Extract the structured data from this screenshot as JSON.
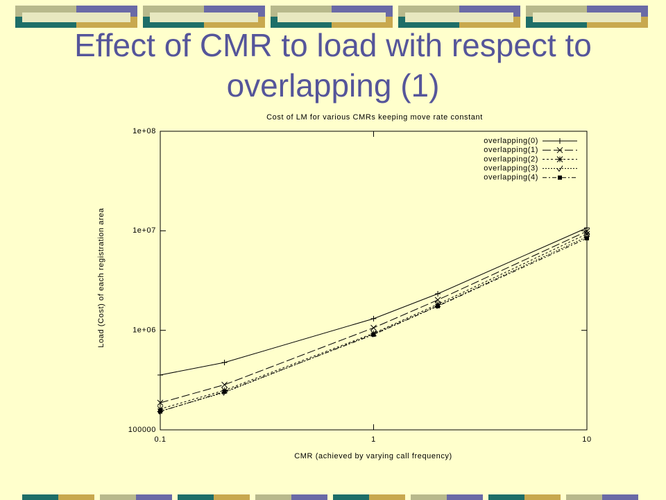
{
  "slide_title": "Effect of CMR to load with respect to overlapping (1)",
  "chart_data": {
    "type": "line",
    "title": "Cost of LM for various CMRs keeping move rate constant",
    "x_label": "CMR (achieved by varying call frequency)",
    "y_label": "Load (Cost) of each registration area",
    "x": [
      0.1,
      0.2,
      1,
      2,
      10
    ],
    "xlog": true,
    "ylog": true,
    "xlim": [
      0.1,
      10
    ],
    "ylim": [
      100000,
      100000000
    ],
    "xticks": [
      0.1,
      1,
      10
    ],
    "yticks": [
      100000,
      {
        "value": 1000000,
        "label": "1e+06"
      },
      {
        "value": 10000000,
        "label": "1e+07"
      },
      {
        "value": 100000000,
        "label": "1e+08"
      }
    ],
    "legend": "top-right",
    "series": [
      {
        "name": "overlapping(0)",
        "color": "#000000",
        "dash": "none",
        "marker": "plus",
        "values": [
          356000,
          475000,
          1310000,
          2330000,
          10700000
        ]
      },
      {
        "name": "overlapping(1)",
        "color": "#000000",
        "dash": "12,4",
        "marker": "cross",
        "values": [
          187000,
          284000,
          1060000,
          2020000,
          9900000
        ]
      },
      {
        "name": "overlapping(2)",
        "color": "#000000",
        "dash": "3,3",
        "marker": "star",
        "values": [
          162000,
          250000,
          933000,
          1830000,
          9300000
        ]
      },
      {
        "name": "overlapping(3)",
        "color": "#000000",
        "dash": "2,2",
        "marker": "check",
        "values": [
          154000,
          238000,
          918000,
          1770000,
          8700000
        ]
      },
      {
        "name": "overlapping(4)",
        "color": "#000000",
        "dash": "6,3,2,3",
        "marker": "square",
        "values": [
          153000,
          242000,
          905000,
          1750000,
          8400000
        ]
      }
    ]
  }
}
